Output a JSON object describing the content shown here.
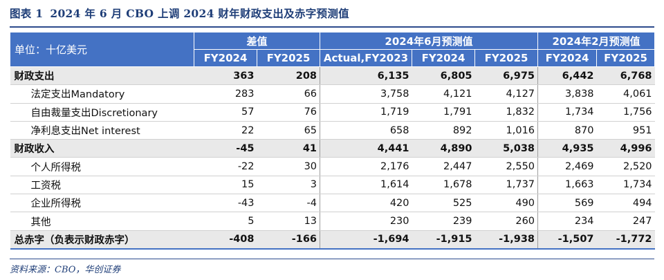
{
  "title": {
    "fig_no": "图表 1",
    "text": "2024 年 6 月 CBO 上调 2024 财年财政支出及赤字预测值"
  },
  "table": {
    "unit": "单位：十亿美元",
    "groups": [
      "差值",
      "2024年6月预测值",
      "2024年2月预测值"
    ],
    "columns": [
      "FY2024",
      "FY2025",
      "Actual,FY2023",
      "FY2024",
      "FY2025",
      "FY2024",
      "FY2025"
    ],
    "rows": [
      {
        "label": "财政支出",
        "values": [
          "363",
          "208",
          "6,135",
          "6,805",
          "6,975",
          "6,442",
          "6,768"
        ]
      },
      {
        "label": "法定支出Mandatory",
        "values": [
          "283",
          "66",
          "3,758",
          "4,121",
          "4,127",
          "3,838",
          "4,061"
        ]
      },
      {
        "label": "自由裁量支出Discretionary",
        "values": [
          "57",
          "76",
          "1,719",
          "1,791",
          "1,832",
          "1,734",
          "1,756"
        ]
      },
      {
        "label": "净利息支出Net interest",
        "values": [
          "22",
          "65",
          "658",
          "892",
          "1,016",
          "870",
          "951"
        ]
      },
      {
        "label": "财政收入",
        "values": [
          "-45",
          "41",
          "4,441",
          "4,890",
          "5,038",
          "4,935",
          "4,996"
        ]
      },
      {
        "label": "个人所得税",
        "values": [
          "-22",
          "30",
          "2,176",
          "2,447",
          "2,550",
          "2,469",
          "2,520"
        ]
      },
      {
        "label": "工资税",
        "values": [
          "15",
          "3",
          "1,614",
          "1,678",
          "1,737",
          "1,663",
          "1,734"
        ]
      },
      {
        "label": "企业所得税",
        "values": [
          "-43",
          "-4",
          "420",
          "525",
          "490",
          "569",
          "494"
        ]
      },
      {
        "label": "其他",
        "values": [
          "5",
          "13",
          "230",
          "239",
          "260",
          "234",
          "247"
        ]
      },
      {
        "label": "总赤字（负表示财政赤字）",
        "values": [
          "-408",
          "-166",
          "-1,694",
          "-1,915",
          "-1,938",
          "-1,507",
          "-1,772"
        ]
      }
    ]
  },
  "source": "资料来源：CBO，华创证券"
}
